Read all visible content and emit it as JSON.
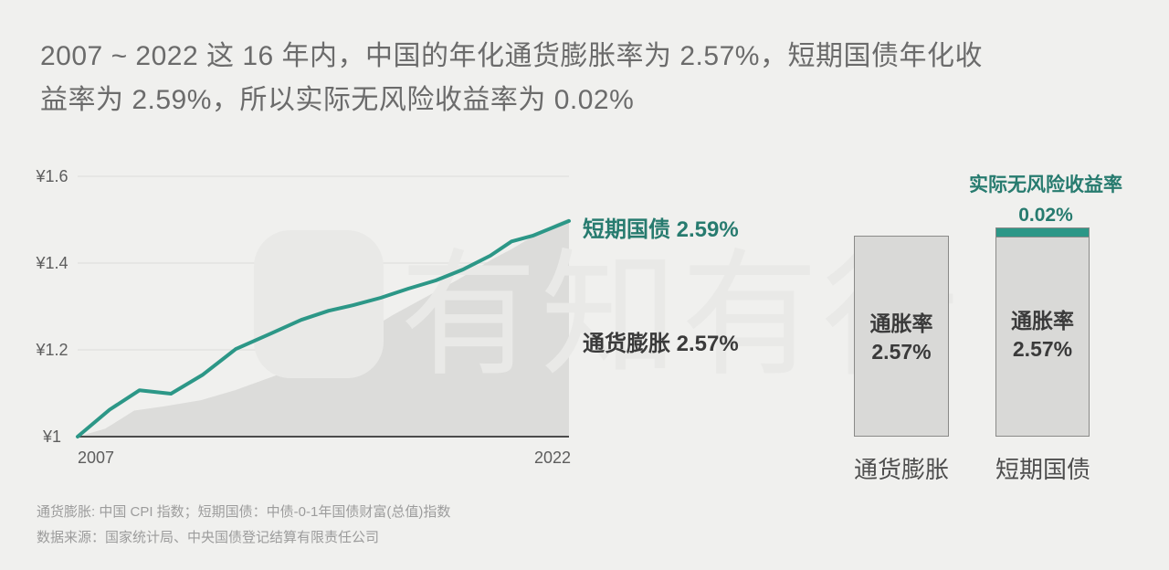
{
  "title": {
    "line1": "2007 ~ 2022 这 16 年内，中国的年化通货膨胀率为 2.57%，短期国债年化收",
    "line2": "益率为 2.59%，所以实际无风险收益率为 0.02%"
  },
  "colors": {
    "accent_teal": "#2c9787",
    "teal_text": "#277b6f",
    "dark_label": "#3a3a3a",
    "area_fill": "#dcdcda",
    "bar_fill": "#d9d9d7",
    "background": "#f0f0ee"
  },
  "watermark": {
    "text": "有知有行"
  },
  "chart_data": [
    {
      "type": "area",
      "x_axis": {
        "tick_labels": [
          "2007",
          "2022"
        ],
        "range_years": [
          2007,
          2022
        ]
      },
      "y_axis": {
        "tick_labels": [
          "¥1",
          "¥1.2",
          "¥1.4",
          "¥1.6"
        ],
        "min": 1.0,
        "max": 1.6,
        "unit": "¥",
        "gridlines": [
          1.2,
          1.4,
          1.6
        ]
      },
      "series": [
        {
          "name": "短期国债",
          "label": "短期国债 2.59%",
          "annual_rate_pct": 2.59,
          "style": "line",
          "color": "#2c9787",
          "points": [
            [
              0,
              1.0
            ],
            [
              0.065,
              1.062
            ],
            [
              0.126,
              1.107
            ],
            [
              0.19,
              1.099
            ],
            [
              0.255,
              1.143
            ],
            [
              0.322,
              1.202
            ],
            [
              0.394,
              1.238
            ],
            [
              0.455,
              1.269
            ],
            [
              0.511,
              1.29
            ],
            [
              0.561,
              1.303
            ],
            [
              0.617,
              1.32
            ],
            [
              0.673,
              1.341
            ],
            [
              0.729,
              1.36
            ],
            [
              0.784,
              1.385
            ],
            [
              0.84,
              1.417
            ],
            [
              0.883,
              1.45
            ],
            [
              0.926,
              1.463
            ],
            [
              1,
              1.497
            ]
          ]
        },
        {
          "name": "通货膨胀",
          "label": "通货膨胀 2.57%",
          "annual_rate_pct": 2.57,
          "style": "area",
          "color": "#dcdcda",
          "points": [
            [
              0,
              1.0
            ],
            [
              0.056,
              1.018
            ],
            [
              0.115,
              1.06
            ],
            [
              0.177,
              1.07
            ],
            [
              0.251,
              1.084
            ],
            [
              0.32,
              1.107
            ],
            [
              0.394,
              1.137
            ],
            [
              0.455,
              1.163
            ],
            [
              0.515,
              1.2
            ],
            [
              0.576,
              1.235
            ],
            [
              0.641,
              1.28
            ],
            [
              0.706,
              1.32
            ],
            [
              0.771,
              1.36
            ],
            [
              0.846,
              1.41
            ],
            [
              0.883,
              1.432
            ],
            [
              0.939,
              1.47
            ],
            [
              0.976,
              1.492
            ],
            [
              1,
              1.503
            ]
          ]
        }
      ]
    },
    {
      "type": "bar",
      "categories": [
        "通货膨胀",
        "短期国债"
      ],
      "bars": [
        {
          "category": "通货膨胀",
          "segments": [
            {
              "name": "通胀率",
              "value_label": "2.57%",
              "value_pct": 2.57,
              "color": "#d9d9d7"
            }
          ]
        },
        {
          "category": "短期国债",
          "segments": [
            {
              "name": "通胀率",
              "value_label": "2.57%",
              "value_pct": 2.57,
              "color": "#d9d9d7"
            },
            {
              "name": "实际无风险收益率",
              "value_label": "0.02%",
              "value_pct": 0.02,
              "color": "#2c9787"
            }
          ],
          "annotation": {
            "line1": "实际无风险收益率",
            "line2": "0.02%"
          }
        }
      ]
    }
  ],
  "footer": {
    "line1": "通货膨胀: 中国 CPI 指数；短期国债：中债-0-1年国债财富(总值)指数",
    "line2": "数据来源：国家统计局、中央国债登记结算有限责任公司"
  }
}
